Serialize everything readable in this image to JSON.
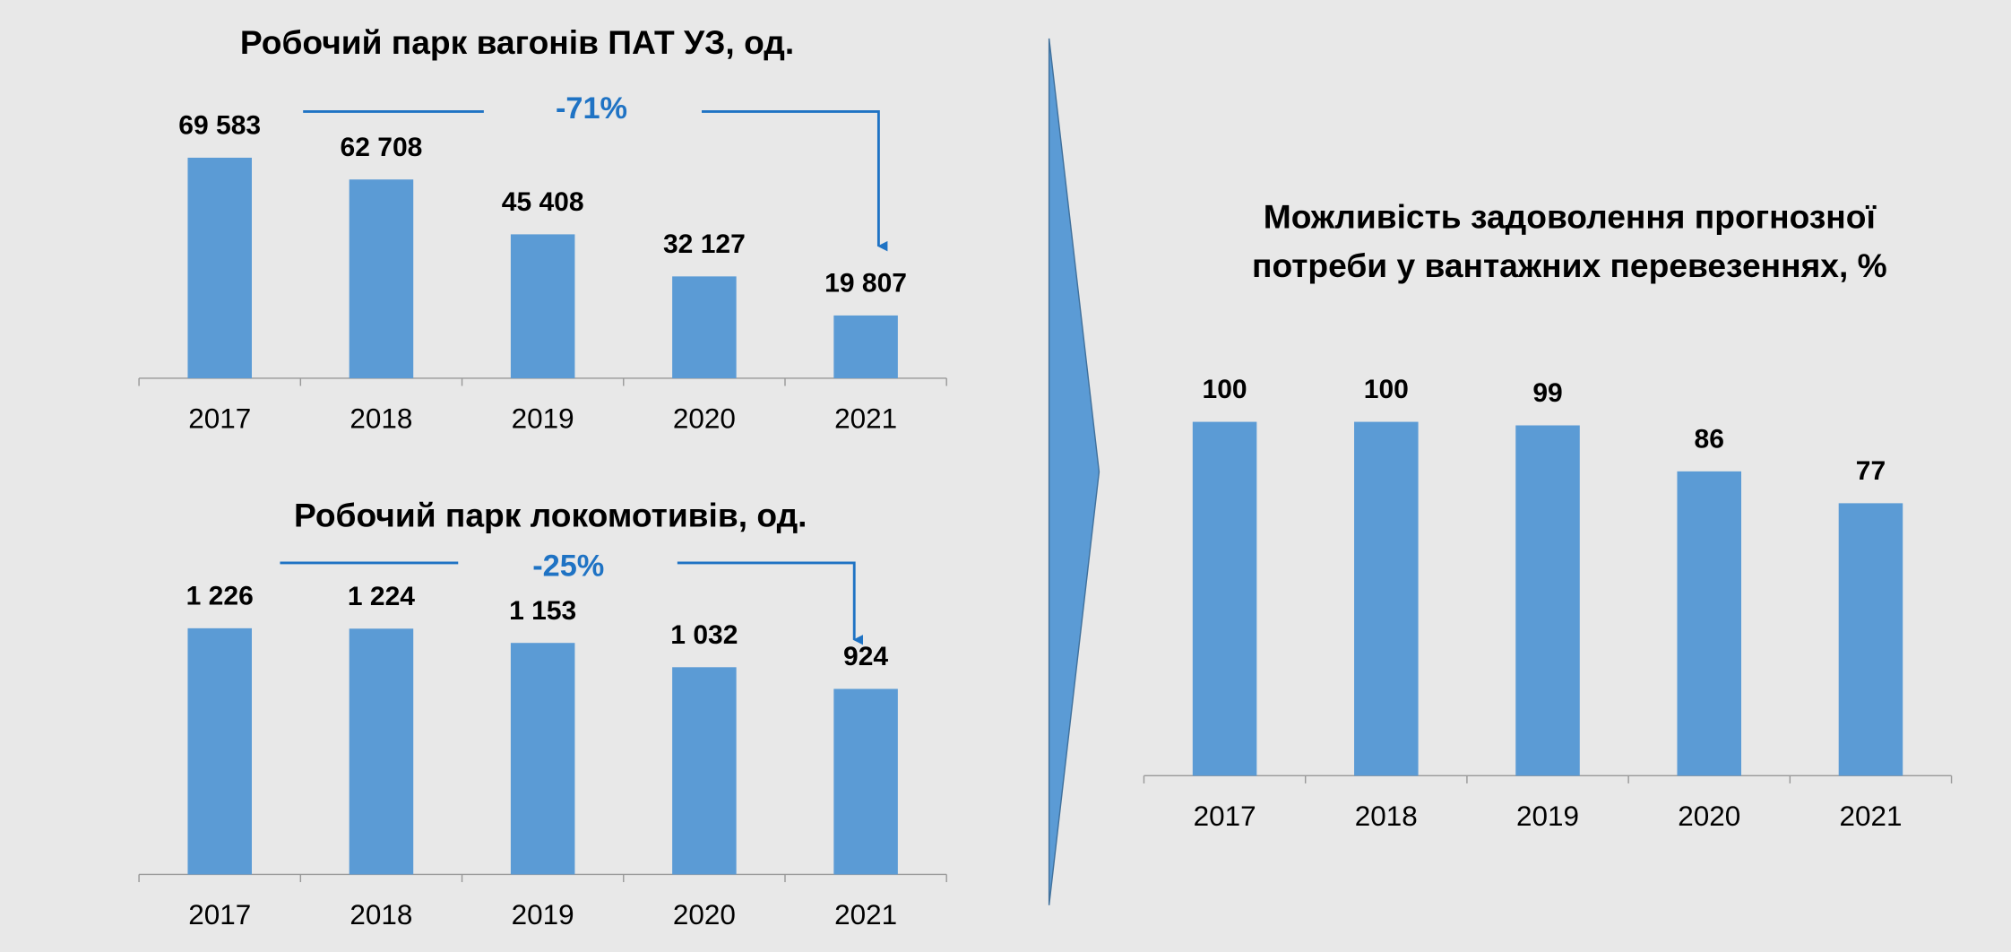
{
  "chart_data": [
    {
      "type": "bar",
      "title": "Робочий парк вагонів ПАТ УЗ, од.",
      "annotation": "-71%",
      "categories": [
        "2017",
        "2018",
        "2019",
        "2020",
        "2021"
      ],
      "values": [
        69583,
        62708,
        45408,
        32127,
        19807
      ],
      "value_labels": [
        "69 583",
        "62 708",
        "45 408",
        "32 127",
        "19 807"
      ],
      "color": "#5b9bd5"
    },
    {
      "type": "bar",
      "title": "Робочий парк локомотивів, од.",
      "annotation": "-25%",
      "categories": [
        "2017",
        "2018",
        "2019",
        "2020",
        "2021"
      ],
      "values": [
        1226,
        1224,
        1153,
        1032,
        924
      ],
      "value_labels": [
        "1 226",
        "1 224",
        "1 153",
        "1 032",
        "924"
      ],
      "color": "#5b9bd5"
    },
    {
      "type": "bar",
      "title": [
        "Можливість задоволення прогнозної",
        "потреби у вантажних перевезеннях, %"
      ],
      "categories": [
        "2017",
        "2018",
        "2019",
        "2020",
        "2021"
      ],
      "values": [
        100,
        100,
        99,
        86,
        77
      ],
      "color": "#5b9bd5"
    }
  ]
}
